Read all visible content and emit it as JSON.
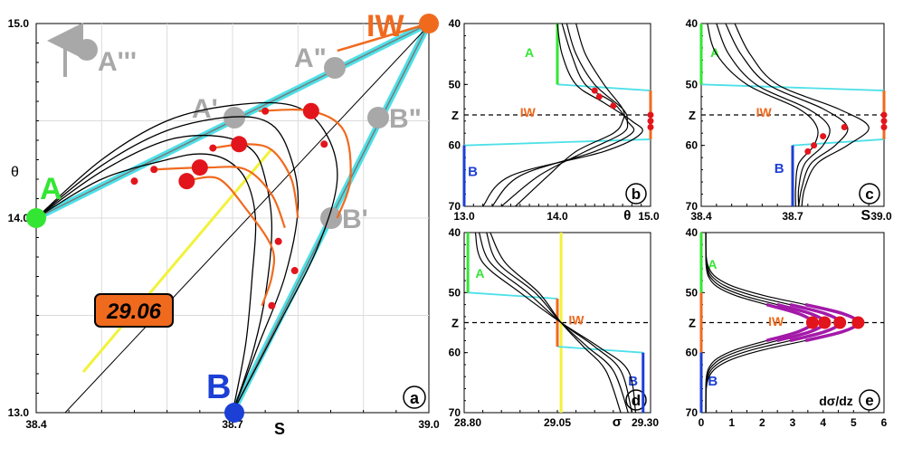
{
  "chart_data": [
    {
      "panel": "a",
      "type": "scatter",
      "xlabel": "S",
      "ylabel": "θ",
      "xlim": [
        38.4,
        39.0
      ],
      "ylim": [
        13.0,
        15.0
      ],
      "xticks": [
        "38.4",
        "38.7",
        "39.0"
      ],
      "yticks": [
        "13.0",
        "14.0",
        "15.0"
      ],
      "grid": true,
      "endpoints": [
        {
          "label": "A",
          "S": 38.4,
          "theta": 14.0,
          "color": "#33e633"
        },
        {
          "label": "B",
          "S": 38.7,
          "theta": 13.0,
          "color": "#1c3fd6"
        },
        {
          "label": "IW",
          "S": 39.0,
          "theta": 15.0,
          "color": "#f06a1e"
        }
      ],
      "ghost_points": [
        {
          "label": "A'",
          "S": 38.7,
          "theta": 14.5
        },
        {
          "label": "A\"",
          "S": 38.85,
          "theta": 14.75
        },
        {
          "label": "A'''",
          "S": 38.5,
          "theta": 14.85
        },
        {
          "label": "B\"",
          "S": 38.95,
          "theta": 14.5
        },
        {
          "label": "B'",
          "S": 38.85,
          "theta": 14.0
        }
      ],
      "isopycnal_label": "29.06",
      "profiles": [
        [
          [
            38.4,
            14.0
          ],
          [
            38.5,
            14.2
          ],
          [
            38.6,
            14.3
          ],
          [
            38.65,
            14.33
          ],
          [
            38.69,
            14.3
          ],
          [
            38.72,
            14.2
          ],
          [
            38.735,
            14.0
          ],
          [
            38.73,
            13.7
          ],
          [
            38.72,
            13.35
          ],
          [
            38.7,
            13.0
          ]
        ],
        [
          [
            38.4,
            14.0
          ],
          [
            38.5,
            14.24
          ],
          [
            38.6,
            14.4
          ],
          [
            38.68,
            14.42
          ],
          [
            38.73,
            14.35
          ],
          [
            38.75,
            14.2
          ],
          [
            38.76,
            13.95
          ],
          [
            38.75,
            13.6
          ],
          [
            38.73,
            13.3
          ],
          [
            38.7,
            13.0
          ]
        ],
        [
          [
            38.4,
            14.0
          ],
          [
            38.5,
            14.27
          ],
          [
            38.6,
            14.45
          ],
          [
            38.7,
            14.52
          ],
          [
            38.76,
            14.48
          ],
          [
            38.79,
            14.3
          ],
          [
            38.8,
            14.05
          ],
          [
            38.78,
            13.7
          ],
          [
            38.74,
            13.35
          ],
          [
            38.7,
            13.0
          ]
        ],
        [
          [
            38.4,
            14.0
          ],
          [
            38.5,
            14.3
          ],
          [
            38.6,
            14.5
          ],
          [
            38.7,
            14.58
          ],
          [
            38.79,
            14.58
          ],
          [
            38.84,
            14.45
          ],
          [
            38.86,
            14.2
          ],
          [
            38.83,
            13.85
          ],
          [
            38.77,
            13.45
          ],
          [
            38.7,
            13.0
          ]
        ]
      ],
      "max_points": [
        [
          38.63,
          14.19
        ],
        [
          38.65,
          14.26
        ],
        [
          38.71,
          14.38
        ],
        [
          38.82,
          14.55
        ]
      ],
      "min_points": [
        [
          38.55,
          14.19
        ],
        [
          38.58,
          14.25
        ],
        [
          38.67,
          14.36
        ],
        [
          38.75,
          14.55
        ],
        [
          38.77,
          13.88
        ],
        [
          38.795,
          13.73
        ],
        [
          38.76,
          13.55
        ],
        [
          38.84,
          14.38
        ]
      ],
      "annotation_color": "#f06a1e"
    },
    {
      "panel": "b",
      "type": "line",
      "xlabel": "θ",
      "ylabel": "",
      "xlim": [
        13.0,
        15.0
      ],
      "ylim": [
        70,
        40
      ],
      "xticks": [
        "13.0",
        "14.0",
        "15.0"
      ],
      "yticks": [
        "40",
        "50",
        "Z",
        "60",
        "70"
      ],
      "layers": {
        "A": "A",
        "IW": "IW",
        "B": "B"
      },
      "profiles": [
        [
          [
            14.0,
            40
          ],
          [
            14.05,
            45
          ],
          [
            14.2,
            50
          ],
          [
            14.5,
            53
          ],
          [
            14.8,
            56
          ],
          [
            14.9,
            58
          ],
          [
            14.5,
            61
          ],
          [
            13.5,
            65
          ],
          [
            13.2,
            70
          ]
        ],
        [
          [
            14.05,
            40
          ],
          [
            14.15,
            45
          ],
          [
            14.3,
            50
          ],
          [
            14.6,
            53
          ],
          [
            14.75,
            56
          ],
          [
            14.8,
            58
          ],
          [
            14.4,
            61
          ],
          [
            13.6,
            65
          ],
          [
            13.3,
            70
          ]
        ],
        [
          [
            14.1,
            40
          ],
          [
            14.2,
            45
          ],
          [
            14.4,
            50
          ],
          [
            14.7,
            54
          ],
          [
            14.75,
            56
          ],
          [
            14.7,
            58
          ],
          [
            14.3,
            61
          ],
          [
            13.8,
            65
          ],
          [
            13.4,
            70
          ]
        ],
        [
          [
            14.2,
            40
          ],
          [
            14.3,
            45
          ],
          [
            14.5,
            50
          ],
          [
            14.7,
            54
          ],
          [
            14.7,
            56
          ],
          [
            14.6,
            58
          ],
          [
            14.2,
            61
          ],
          [
            13.9,
            65
          ],
          [
            13.55,
            70
          ]
        ]
      ],
      "points": [
        [
          14.45,
          52
        ],
        [
          14.4,
          51
        ],
        [
          14.6,
          53.5
        ],
        [
          15.0,
          56
        ],
        [
          15.0,
          57
        ],
        [
          15.0,
          55
        ]
      ]
    },
    {
      "panel": "c",
      "type": "line",
      "xlabel": "S",
      "ylabel": "",
      "xlim": [
        38.4,
        39.0
      ],
      "ylim": [
        70,
        40
      ],
      "xticks": [
        "38.4",
        "38.7",
        "39.0"
      ],
      "yticks": [
        "40",
        "50",
        "Z",
        "60",
        "70"
      ],
      "layers": {
        "A": "A",
        "IW": "IW",
        "B": "B"
      },
      "points": [
        [
          38.75,
          61
        ],
        [
          38.77,
          60
        ],
        [
          38.8,
          58.5
        ],
        [
          38.87,
          57
        ],
        [
          39.0,
          56
        ],
        [
          39.0,
          57
        ],
        [
          39.0,
          55
        ]
      ]
    },
    {
      "panel": "d",
      "type": "line",
      "xlabel": "σ",
      "ylabel": "",
      "xlim": [
        28.8,
        29.3
      ],
      "ylim": [
        70,
        40
      ],
      "xticks": [
        "28.80",
        "29.05",
        "29.30"
      ],
      "yticks": [
        "40",
        "50",
        "Z",
        "60",
        "70"
      ],
      "layers": {
        "A": "A",
        "IW": "IW",
        "B": "B"
      },
      "reference_line": 29.06
    },
    {
      "panel": "e",
      "type": "line",
      "xlabel": "dσ/dz",
      "ylabel": "",
      "xlim": [
        0,
        6
      ],
      "ylim": [
        70,
        40
      ],
      "xticks": [
        "0",
        "1",
        "2",
        "3",
        "4",
        "5",
        "6"
      ],
      "yticks": [
        "40",
        "50",
        "Z",
        "60",
        "70"
      ],
      "layers": {
        "A": "A",
        "IW": "IW",
        "B": "B"
      },
      "peaks": [
        3.5,
        3.9,
        4.4,
        5.0
      ]
    }
  ],
  "labels": {
    "panel_a": "a",
    "panel_b": "b",
    "panel_c": "c",
    "panel_d": "d",
    "panel_e": "e",
    "A": "A",
    "B": "B",
    "IW": "IW",
    "Z": "Z",
    "ghost_A1": "A'",
    "ghost_A2": "A\"",
    "ghost_A3": "A'''",
    "ghost_B1": "B'",
    "ghost_B2": "B\"",
    "isopycnal": "29.06",
    "S": "S",
    "theta": "θ",
    "sigma": "σ",
    "dsdz": "dσ/dz"
  },
  "colors": {
    "A": "#33e633",
    "B": "#1c3fd6",
    "IW": "#f06a1e",
    "cyan": "#4ee0e8",
    "yellow": "#f2f23a",
    "red_points": "#e3151c",
    "magenta": "#a31aa8",
    "ghost": "#a8a8a8"
  }
}
